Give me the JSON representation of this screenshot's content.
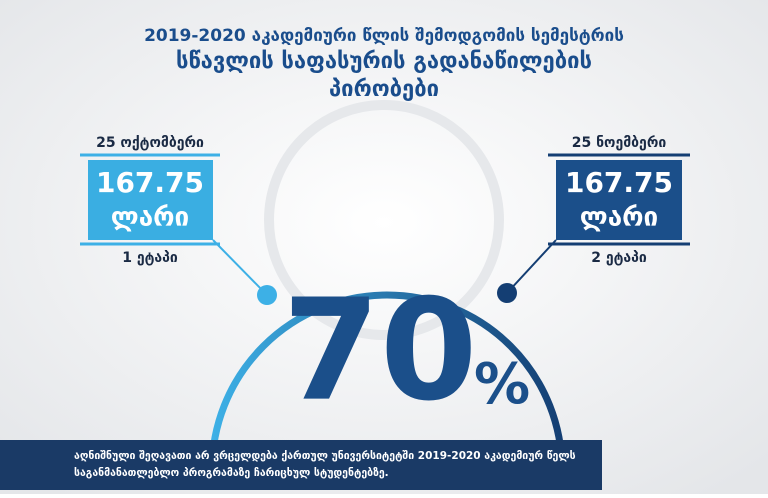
{
  "header": {
    "lines": [
      "2019-2020 აკადემიური წლის შემოდგომის სემესტრის",
      "სწავლის საფასურის გადანაწილების",
      "პირობები"
    ]
  },
  "stages": [
    {
      "date": "25 ოქტომბერი",
      "amount": "167.75",
      "currency": "ლარი",
      "label": "1 ეტაპი"
    },
    {
      "date": "25 ნოემბერი",
      "amount": "167.75",
      "currency": "ლარი",
      "label": "2 ეტაპი"
    }
  ],
  "discount": {
    "number": "70",
    "sign": "%"
  },
  "footer": {
    "lines": [
      "აღნიშნული შეღავათი არ ვრცელდება ქართულ უნივერსიტეტში 2019-2020 აკადემიურ წელს",
      "საგანმანათლებლო პროგრამაზე ჩარიცხულ სტუდენტებზე."
    ]
  }
}
